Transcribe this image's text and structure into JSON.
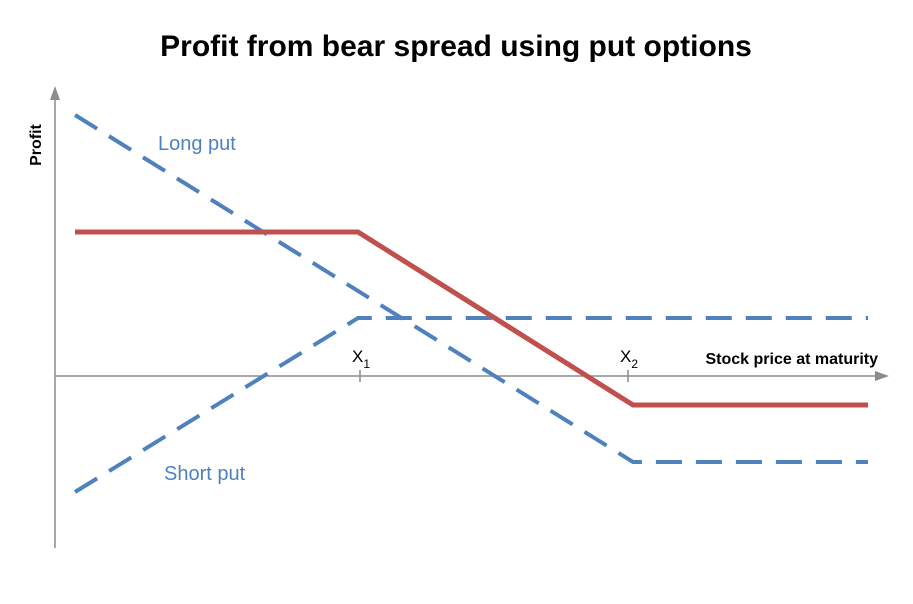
{
  "title": "Profit from bear spread using put options",
  "y_axis_label": "Profit",
  "x_axis_label": "Stock price at maturity",
  "curve_labels": {
    "long_put": "Long put",
    "short_put": "Short put"
  },
  "strikes": [
    {
      "text": "X",
      "subscript": "1"
    },
    {
      "text": "X",
      "subscript": "2"
    }
  ]
}
